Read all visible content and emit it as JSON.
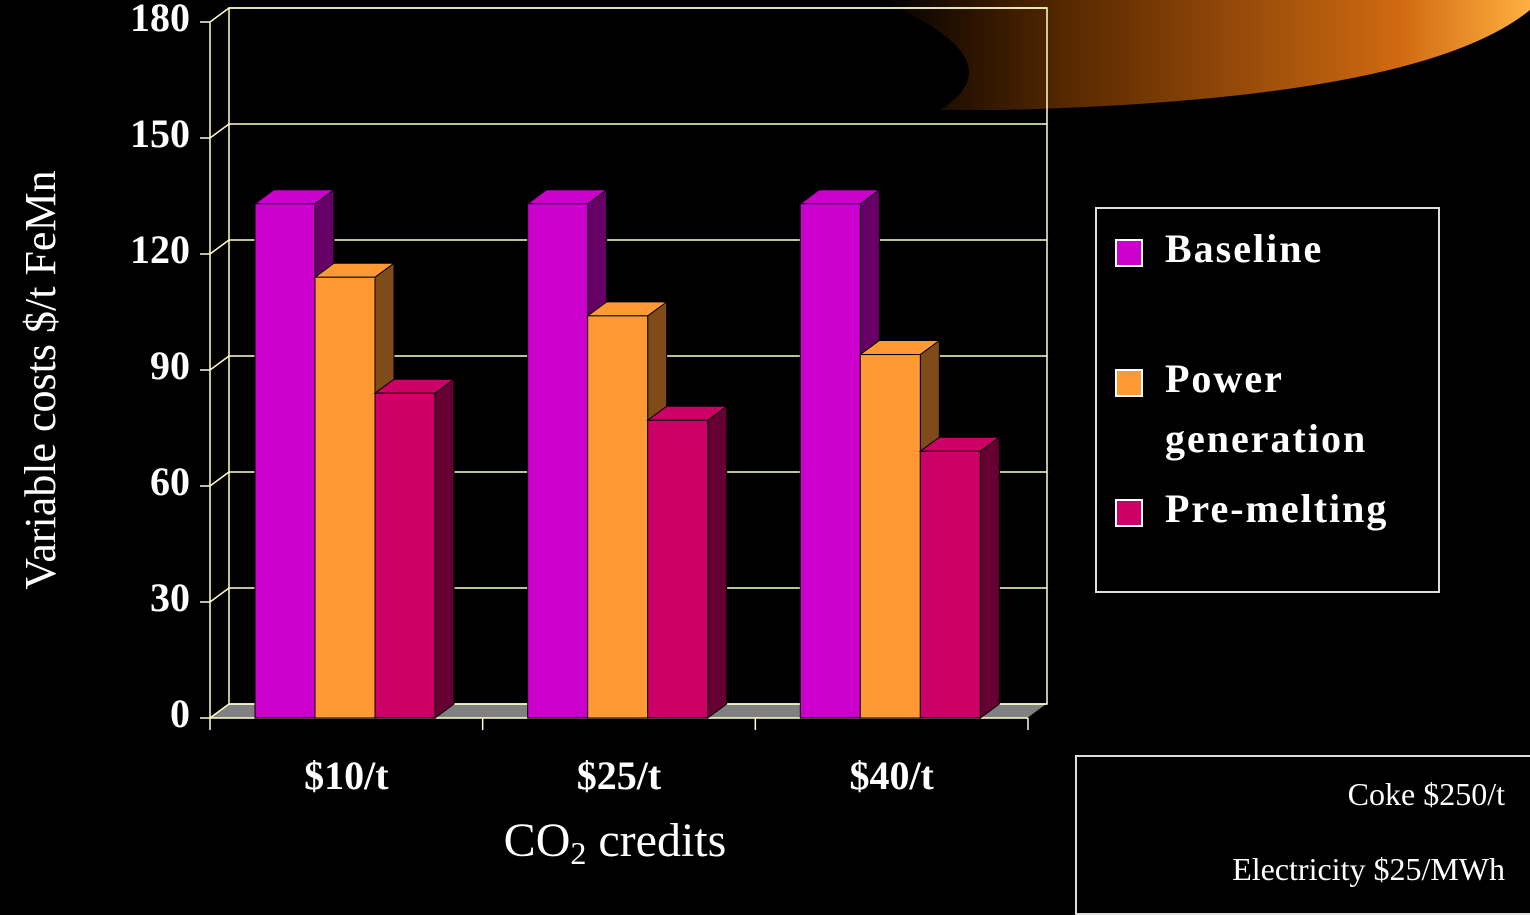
{
  "chart_data": {
    "type": "bar3d",
    "categories": [
      "$10/t",
      "$25/t",
      "$40/t"
    ],
    "series": [
      {
        "name": "Baseline",
        "color": "#cc00cc",
        "side": "#660066",
        "values": [
          133,
          133,
          133
        ]
      },
      {
        "name": "Power generation",
        "color": "#ff9933",
        "side": "#7f4c19",
        "values": [
          114,
          104,
          94
        ]
      },
      {
        "name": "Pre-melting",
        "color": "#cc0066",
        "side": "#660033",
        "values": [
          84,
          77,
          69
        ]
      }
    ],
    "ylabel": "Variable costs $/t FeMn",
    "xlabel": [
      "CO",
      "2",
      " credits"
    ],
    "ylim": [
      0,
      180
    ],
    "yticks": [
      0,
      30,
      60,
      90,
      120,
      150,
      180
    ],
    "grid": true,
    "notes": [
      "Coke $250/t",
      "Electricity $25/MWh"
    ]
  }
}
